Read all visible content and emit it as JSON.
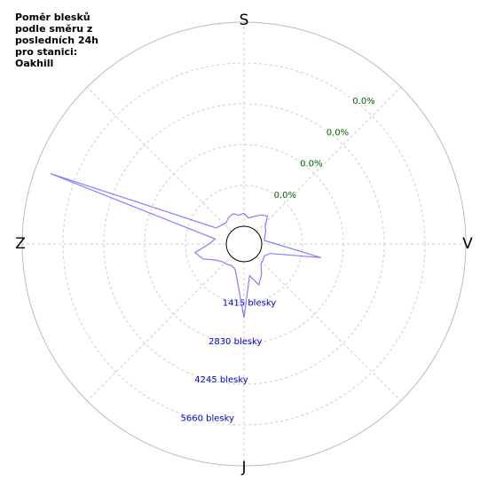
{
  "chart_data": {
    "type": "polar",
    "title_lines": [
      "Poměr blesků",
      "podle směru z",
      "posledních 24h",
      "pro stanici:",
      "Oakhill"
    ],
    "directions": [
      "S",
      "V",
      "J",
      "Z"
    ],
    "theta": [
      0,
      10,
      20,
      30,
      40,
      50,
      60,
      70,
      80,
      90,
      100,
      110,
      120,
      130,
      140,
      150,
      160,
      170,
      180,
      190,
      200,
      210,
      220,
      230,
      240,
      250,
      260,
      270,
      280,
      290,
      300,
      310,
      320,
      330,
      340,
      350
    ],
    "series": [
      {
        "color": "#8080ff",
        "values": [
          450,
          300,
          400,
          550,
          650,
          350,
          250,
          150,
          100,
          500,
          2090,
          350,
          200,
          250,
          300,
          600,
          890,
          500,
          1940,
          700,
          300,
          250,
          300,
          350,
          500,
          900,
          1110,
          600,
          400,
          6520,
          500,
          400,
          350,
          450,
          500,
          400
        ]
      }
    ],
    "rlim": [
      0,
      7075
    ],
    "rticks": [
      {
        "value": 1415,
        "label": "1415 blesky"
      },
      {
        "value": 2830,
        "label": "2830 blesky"
      },
      {
        "value": 4245,
        "label": "4245 blesky"
      },
      {
        "value": 5660,
        "label": "5660 blesky"
      }
    ],
    "pct_labels": [
      "0.0%",
      "0.0%",
      "0.0%",
      "0.0%"
    ],
    "rtick_color": "#0000cc",
    "pct_color": "#006600",
    "grid": true
  }
}
